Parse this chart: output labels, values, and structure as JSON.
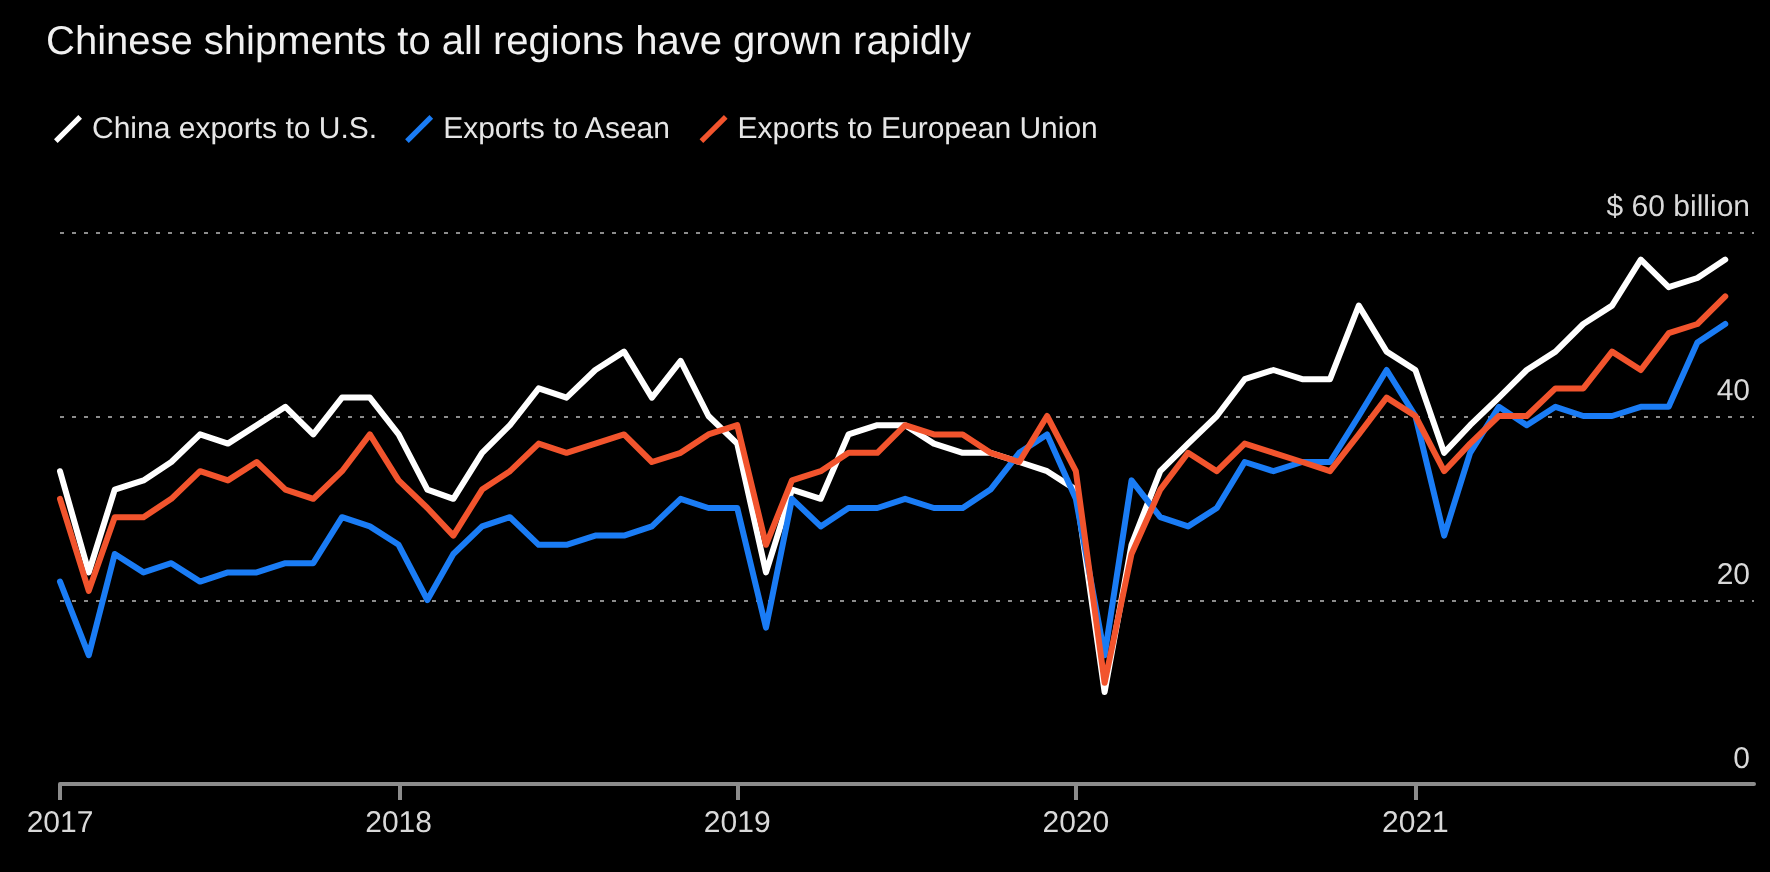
{
  "chart_data": {
    "type": "line",
    "title": "Chinese shipments to all regions have grown rapidly",
    "x": [
      "2017-01",
      "2017-02",
      "2017-03",
      "2017-04",
      "2017-05",
      "2017-06",
      "2017-07",
      "2017-08",
      "2017-09",
      "2017-10",
      "2017-11",
      "2017-12",
      "2018-01",
      "2018-02",
      "2018-03",
      "2018-04",
      "2018-05",
      "2018-06",
      "2018-07",
      "2018-08",
      "2018-09",
      "2018-10",
      "2018-11",
      "2018-12",
      "2019-01",
      "2019-02",
      "2019-03",
      "2019-04",
      "2019-05",
      "2019-06",
      "2019-07",
      "2019-08",
      "2019-09",
      "2019-10",
      "2019-11",
      "2019-12",
      "2020-01",
      "2020-02",
      "2020-03",
      "2020-04",
      "2020-05",
      "2020-06",
      "2020-07",
      "2020-08",
      "2020-09",
      "2020-10",
      "2020-11",
      "2020-12",
      "2021-01",
      "2021-02",
      "2021-03",
      "2021-04",
      "2021-05",
      "2021-06",
      "2021-07",
      "2021-08",
      "2021-09",
      "2021-10",
      "2021-11",
      "2021-12"
    ],
    "series": [
      {
        "name": "China exports to U.S.",
        "color": "#ffffff",
        "values": [
          34,
          23,
          32,
          33,
          35,
          38,
          37,
          39,
          41,
          38,
          42,
          42,
          38,
          32,
          31,
          36,
          39,
          43,
          42,
          45,
          47,
          42,
          46,
          40,
          37,
          23,
          32,
          31,
          38,
          39,
          39,
          37,
          36,
          36,
          35,
          34,
          32,
          10,
          26,
          34,
          37,
          40,
          44,
          45,
          44,
          44,
          52,
          47,
          45,
          36,
          39,
          42,
          45,
          47,
          50,
          52,
          57,
          54,
          55,
          57
        ]
      },
      {
        "name": "Exports to Asean",
        "color": "#1a7cf5",
        "values": [
          22,
          14,
          25,
          23,
          24,
          22,
          23,
          23,
          24,
          24,
          29,
          28,
          26,
          20,
          25,
          28,
          29,
          26,
          26,
          27,
          27,
          28,
          31,
          30,
          30,
          17,
          31,
          28,
          30,
          30,
          31,
          30,
          30,
          32,
          36,
          38,
          31,
          14,
          33,
          29,
          28,
          30,
          35,
          34,
          35,
          35,
          40,
          45,
          40,
          27,
          36,
          41,
          39,
          41,
          40,
          40,
          41,
          41,
          48,
          50
        ]
      },
      {
        "name": "Exports to European Union",
        "color": "#f2542d",
        "values": [
          31,
          21,
          29,
          29,
          31,
          34,
          33,
          35,
          32,
          31,
          34,
          38,
          33,
          30,
          27,
          32,
          34,
          37,
          36,
          37,
          38,
          35,
          36,
          38,
          39,
          26,
          33,
          34,
          36,
          36,
          39,
          38,
          38,
          36,
          35,
          40,
          34,
          11,
          25,
          32,
          36,
          34,
          37,
          36,
          35,
          34,
          38,
          42,
          40,
          34,
          37,
          40,
          40,
          43,
          43,
          47,
          45,
          49,
          50,
          53
        ]
      }
    ],
    "xlim": [
      "2017-01",
      "2022-01"
    ],
    "xticks": [
      {
        "value": "2017-01",
        "label": "2017"
      },
      {
        "value": "2018-01",
        "label": "2018"
      },
      {
        "value": "2019-01",
        "label": "2019"
      },
      {
        "value": "2020-01",
        "label": "2020"
      },
      {
        "value": "2021-01",
        "label": "2021"
      }
    ],
    "ylim": [
      0,
      60
    ],
    "yticks": [
      0,
      20,
      40,
      {
        "value": 60,
        "label": "$ 60 billion"
      }
    ],
    "grid": "y",
    "legend": "top left",
    "marker": "none",
    "line_style": "solid"
  }
}
